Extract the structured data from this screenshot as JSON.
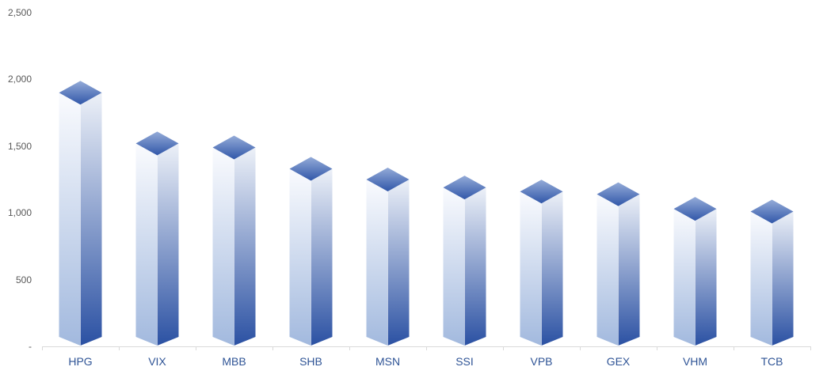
{
  "chart_data": {
    "type": "bar",
    "variant": "3d-column",
    "title": "",
    "xlabel": "",
    "ylabel": "",
    "categories": [
      "HPG",
      "VIX",
      "MBB",
      "SHB",
      "MSN",
      "SSI",
      "VPB",
      "GEX",
      "VHM",
      "TCB"
    ],
    "values": [
      1900,
      1520,
      1490,
      1330,
      1250,
      1190,
      1160,
      1140,
      1030,
      1010
    ],
    "ylim": [
      0,
      2500
    ],
    "y_ticks": [
      {
        "value": 2500,
        "label": "2,500"
      },
      {
        "value": 2000,
        "label": "2,000"
      },
      {
        "value": 1500,
        "label": "1,500"
      },
      {
        "value": 1000,
        "label": "1,000"
      },
      {
        "value": 500,
        "label": "500"
      },
      {
        "value": 0,
        "label": "-"
      }
    ],
    "grid": false,
    "legend": false,
    "colors": {
      "y_label": "#595959",
      "x_label": "#2F5496",
      "axis_line": "#D9D9D9",
      "bar_left_top": "#FAFBFE",
      "bar_left_bottom": "#A2B9DE",
      "bar_right_top": "#EDF1F8",
      "bar_right_bottom": "#2B51A3",
      "bar_top_light": "#94ABD8",
      "bar_top_dark": "#3157A9"
    }
  }
}
